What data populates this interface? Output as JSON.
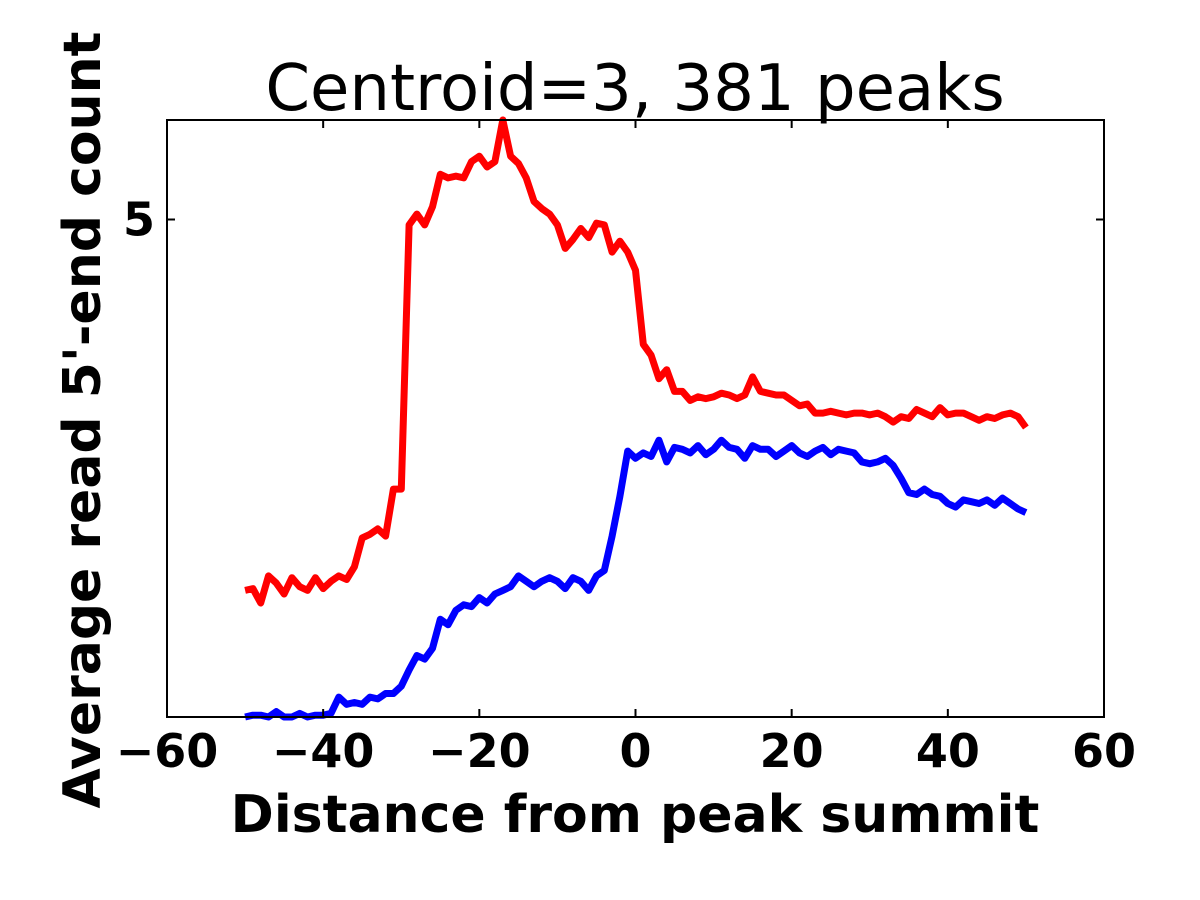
{
  "chart_data": {
    "type": "line",
    "title": "Centroid=3, 381 peaks",
    "xlabel": "Distance from peak summit",
    "ylabel": "Average read 5'-end count",
    "xlim": [
      -60,
      60
    ],
    "ylim": [
      2.25,
      5.55
    ],
    "xticks": [
      "−60",
      "−40",
      "−20",
      "0",
      "20",
      "40",
      "60"
    ],
    "xtick_values": [
      -60,
      -40,
      -20,
      0,
      20,
      40,
      60
    ],
    "yticks": [
      "5"
    ],
    "ytick_values": [
      5
    ],
    "grid": false,
    "legend": "none",
    "series": [
      {
        "color": "#ff0000",
        "x": [
          -50,
          -49,
          -48,
          -47,
          -46,
          -45,
          -44,
          -43,
          -42,
          -41,
          -40,
          -39,
          -38,
          -37,
          -36,
          -35,
          -34,
          -33,
          -32,
          -31,
          -30,
          -29,
          -28,
          -27,
          -26,
          -25,
          -24,
          -23,
          -22,
          -21,
          -20,
          -19,
          -18,
          -17,
          -16,
          -15,
          -14,
          -13,
          -12,
          -11,
          -10,
          -9,
          -8,
          -7,
          -6,
          -5,
          -4,
          -3,
          -2,
          -1,
          0,
          1,
          2,
          3,
          4,
          5,
          6,
          7,
          8,
          9,
          10,
          11,
          12,
          13,
          14,
          15,
          16,
          17,
          18,
          19,
          20,
          21,
          22,
          23,
          24,
          25,
          26,
          27,
          28,
          29,
          30,
          31,
          32,
          33,
          34,
          35,
          36,
          37,
          38,
          39,
          40,
          41,
          42,
          43,
          44,
          45,
          46,
          47,
          48,
          49,
          50
        ],
        "y": [
          2.95,
          2.96,
          2.88,
          3.03,
          2.99,
          2.93,
          3.02,
          2.97,
          2.95,
          3.02,
          2.96,
          3.0,
          3.03,
          3.01,
          3.08,
          3.24,
          3.26,
          3.29,
          3.25,
          3.51,
          3.51,
          4.97,
          5.03,
          4.97,
          5.07,
          5.25,
          5.23,
          5.24,
          5.23,
          5.32,
          5.35,
          5.29,
          5.32,
          5.59,
          5.35,
          5.31,
          5.23,
          5.1,
          5.06,
          5.03,
          4.97,
          4.84,
          4.89,
          4.95,
          4.9,
          4.98,
          4.97,
          4.82,
          4.88,
          4.82,
          4.72,
          4.31,
          4.25,
          4.12,
          4.17,
          4.05,
          4.05,
          4.0,
          4.02,
          4.01,
          4.02,
          4.04,
          4.03,
          4.01,
          4.03,
          4.13,
          4.05,
          4.04,
          4.03,
          4.03,
          4.0,
          3.97,
          3.98,
          3.93,
          3.93,
          3.94,
          3.93,
          3.92,
          3.93,
          3.93,
          3.92,
          3.93,
          3.91,
          3.88,
          3.91,
          3.9,
          3.95,
          3.93,
          3.91,
          3.96,
          3.92,
          3.93,
          3.93,
          3.91,
          3.89,
          3.91,
          3.9,
          3.92,
          3.93,
          3.91,
          3.85
        ]
      },
      {
        "color": "#0000ff",
        "x": [
          -50,
          -49,
          -48,
          -47,
          -46,
          -45,
          -44,
          -43,
          -42,
          -41,
          -40,
          -39,
          -38,
          -37,
          -36,
          -35,
          -34,
          -33,
          -32,
          -31,
          -30,
          -29,
          -28,
          -27,
          -26,
          -25,
          -24,
          -23,
          -22,
          -21,
          -20,
          -19,
          -18,
          -17,
          -16,
          -15,
          -14,
          -13,
          -12,
          -11,
          -10,
          -9,
          -8,
          -7,
          -6,
          -5,
          -4,
          -3,
          -2,
          -1,
          0,
          1,
          2,
          3,
          4,
          5,
          6,
          7,
          8,
          9,
          10,
          11,
          12,
          13,
          14,
          15,
          16,
          17,
          18,
          19,
          20,
          21,
          22,
          23,
          24,
          25,
          26,
          27,
          28,
          29,
          30,
          31,
          32,
          33,
          34,
          35,
          36,
          37,
          38,
          39,
          40,
          41,
          42,
          43,
          44,
          45,
          46,
          47,
          48,
          49,
          50
        ],
        "y": [
          2.25,
          2.26,
          2.26,
          2.25,
          2.28,
          2.25,
          2.24,
          2.27,
          2.23,
          2.26,
          2.26,
          2.27,
          2.36,
          2.32,
          2.33,
          2.32,
          2.36,
          2.35,
          2.38,
          2.38,
          2.42,
          2.51,
          2.59,
          2.57,
          2.63,
          2.79,
          2.76,
          2.84,
          2.87,
          2.86,
          2.91,
          2.88,
          2.93,
          2.95,
          2.97,
          3.03,
          3.0,
          2.97,
          3.0,
          3.02,
          3.0,
          2.96,
          3.02,
          3.0,
          2.95,
          3.03,
          3.06,
          3.25,
          3.47,
          3.72,
          3.68,
          3.71,
          3.69,
          3.78,
          3.66,
          3.74,
          3.73,
          3.71,
          3.75,
          3.7,
          3.73,
          3.78,
          3.74,
          3.73,
          3.68,
          3.75,
          3.73,
          3.73,
          3.69,
          3.72,
          3.75,
          3.71,
          3.69,
          3.72,
          3.74,
          3.7,
          3.73,
          3.72,
          3.71,
          3.66,
          3.65,
          3.66,
          3.68,
          3.64,
          3.57,
          3.49,
          3.48,
          3.51,
          3.48,
          3.47,
          3.43,
          3.41,
          3.45,
          3.44,
          3.43,
          3.45,
          3.42,
          3.46,
          3.43,
          3.4,
          3.38
        ]
      }
    ]
  }
}
